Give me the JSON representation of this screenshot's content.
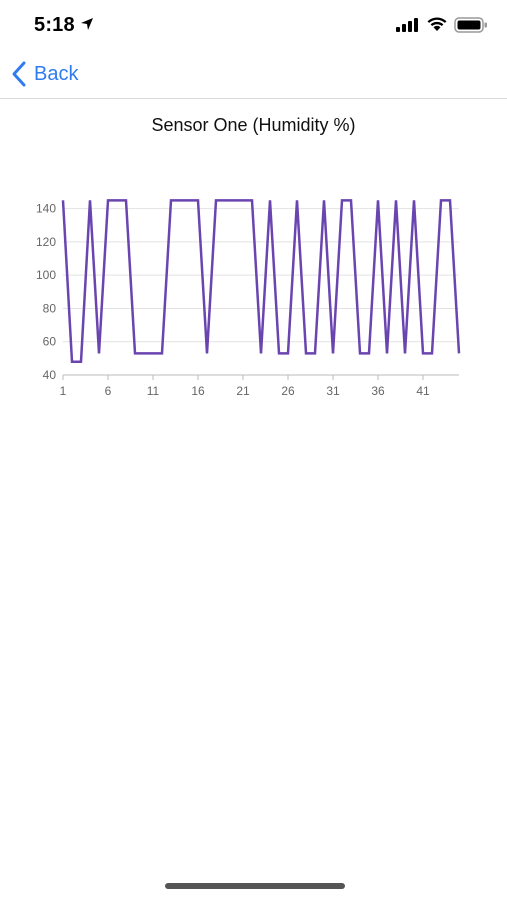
{
  "status_bar": {
    "time": "5:18"
  },
  "nav": {
    "back_label": "Back"
  },
  "chart_data": {
    "type": "line",
    "title": "Sensor One (Humidity %)",
    "x": [
      1,
      2,
      3,
      4,
      5,
      6,
      7,
      8,
      9,
      10,
      11,
      12,
      13,
      14,
      15,
      16,
      17,
      18,
      19,
      20,
      21,
      22,
      23,
      24,
      25,
      26,
      27,
      28,
      29,
      30,
      31,
      32,
      33,
      34,
      35,
      36,
      37,
      38,
      39,
      40,
      41,
      42,
      43,
      44,
      45
    ],
    "series": [
      {
        "values": [
          145,
          48,
          48,
          145,
          53,
          145,
          145,
          145,
          53,
          53,
          53,
          53,
          145,
          145,
          145,
          145,
          53,
          145,
          145,
          145,
          145,
          145,
          53,
          145,
          53,
          53,
          145,
          53,
          53,
          145,
          53,
          145,
          145,
          53,
          53,
          145,
          53,
          145,
          53,
          145,
          53,
          53,
          145,
          145,
          53
        ]
      }
    ],
    "y_ticks": [
      40,
      60,
      80,
      100,
      120,
      140
    ],
    "x_ticks": [
      1,
      6,
      11,
      16,
      21,
      26,
      31,
      36,
      41
    ],
    "ylim": [
      40,
      150
    ],
    "xlim": [
      1,
      45
    ],
    "line_color": "#6a45b0",
    "grid": true
  }
}
